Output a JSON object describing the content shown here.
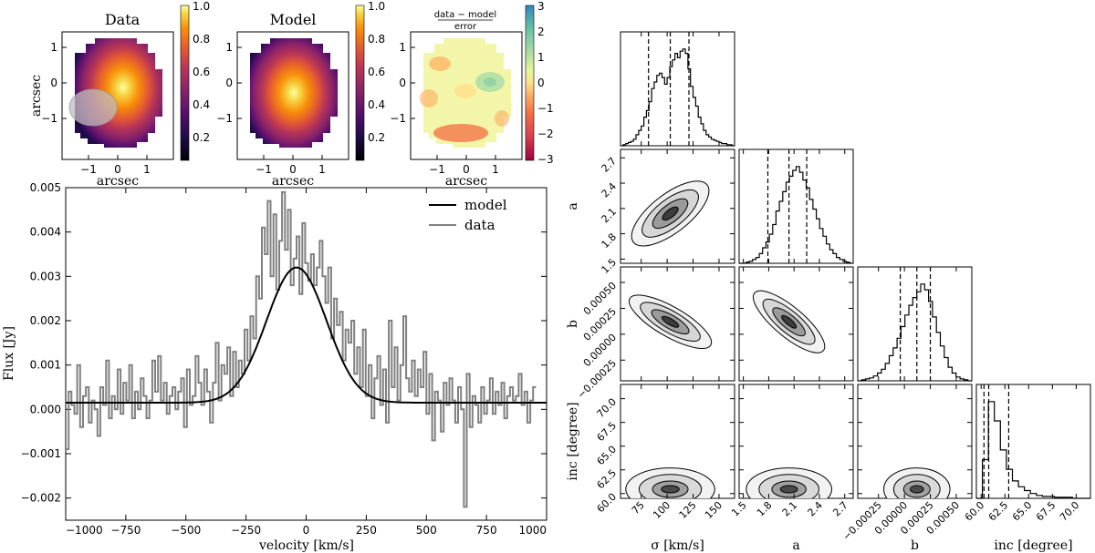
{
  "colors": {
    "black": "#000000",
    "data_line": "#808080",
    "frame": "#000000"
  },
  "maps": [
    {
      "title": "Data",
      "kind": "flux",
      "xlabel": "arcsec",
      "ylabel": "arcsec",
      "x_ticks": [
        "−1",
        "0",
        "1"
      ],
      "y_ticks": [
        "1",
        "0",
        "−1"
      ],
      "colorbar_ticks": [
        "1.0",
        "0.8",
        "0.6",
        "0.4",
        "0.2"
      ],
      "beam": true
    },
    {
      "title": "Model",
      "kind": "flux",
      "xlabel": "arcsec",
      "ylabel": "",
      "x_ticks": [
        "−1",
        "0",
        "1"
      ],
      "y_ticks": [
        "1",
        "0",
        "−1"
      ],
      "colorbar_ticks": [
        "1.0",
        "0.8",
        "0.6",
        "0.4",
        "0.2"
      ],
      "beam": false
    },
    {
      "title_num": "data − model",
      "title_den": "error",
      "kind": "residual",
      "xlabel": "arcsec",
      "ylabel": "",
      "x_ticks": [
        "−1",
        "0",
        "1"
      ],
      "y_ticks": [
        "1",
        "0",
        "−1"
      ],
      "colorbar_ticks": [
        "3",
        "2",
        "1",
        "0",
        "−1",
        "−2",
        "−3"
      ],
      "beam": false
    }
  ],
  "chart_data": [
    {
      "type": "line",
      "title": "",
      "xlabel": "velocity [km/s]",
      "ylabel": "Flux [Jy]",
      "xlim": [
        -1000,
        1000
      ],
      "ylim": [
        -0.0025,
        0.005
      ],
      "x_tick_labels": [
        "−1000",
        "−750",
        "−500",
        "−250",
        "0",
        "250",
        "500",
        "750",
        "1000"
      ],
      "x_tick_values": [
        -1000,
        -750,
        -500,
        -250,
        0,
        250,
        500,
        750,
        1000
      ],
      "y_tick_labels": [
        "0.005",
        "0.004",
        "0.003",
        "0.002",
        "0.001",
        "0.000",
        "−0.001",
        "−0.002"
      ],
      "y_tick_values": [
        0.005,
        0.004,
        0.003,
        0.002,
        0.001,
        0.0,
        -0.001,
        -0.002
      ],
      "legend_position": "top-right",
      "series": [
        {
          "name": "model",
          "style": "smooth",
          "baseline": 0.00015,
          "amplitude": 0.00305,
          "center": -40,
          "sigma": 125
        },
        {
          "name": "data",
          "style": "steps",
          "x_start": -1000,
          "x_step": 12,
          "values": [
            -0.0009,
            0.0004,
            0.0001,
            -0.0001,
            0.001,
            -0.0004,
            0.0003,
            0.0005,
            -0.0003,
            0.0002,
            0.0,
            -0.0006,
            0.0005,
            0.0001,
            0.0011,
            -0.0002,
            0.0003,
            0.0,
            0.0009,
            -0.0001,
            0.0006,
            0.0002,
            0.001,
            -0.0002,
            0.0004,
            0.0,
            0.0007,
            0.0003,
            -0.0002,
            0.0002,
            0.0011,
            0.0004,
            0.0012,
            0.0002,
            0.0006,
            -0.0001,
            0.0003,
            0.0005,
            0.0,
            0.0004,
            0.0007,
            -0.0004,
            0.0009,
            0.0001,
            0.0003,
            0.0012,
            0.0006,
            0.0001,
            0.0009,
            0.0004,
            -0.0003,
            0.0006,
            0.0015,
            0.0002,
            0.001,
            0.0008,
            0.0014,
            0.0003,
            0.0013,
            0.0005,
            0.0011,
            0.0008,
            0.0018,
            0.0011,
            0.0021,
            0.0016,
            0.003,
            0.0025,
            0.0041,
            0.0035,
            0.0047,
            0.003,
            0.0044,
            0.0027,
            0.0038,
            0.0049,
            0.0036,
            0.0045,
            0.0028,
            0.0034,
            0.0039,
            0.0026,
            0.0042,
            0.0033,
            0.0029,
            0.0035,
            0.0028,
            0.0032,
            0.0038,
            0.003,
            0.0024,
            0.0032,
            0.0016,
            0.0025,
            0.0019,
            0.0022,
            0.0011,
            0.0018,
            0.0015,
            0.002,
            0.0008,
            0.0014,
            0.0005,
            0.0018,
            0.0003,
            0.001,
            -0.0002,
            0.0007,
            0.0012,
            0.0001,
            0.0009,
            -0.0003,
            0.002,
            0.0005,
            0.0014,
            0.0002,
            0.001,
            0.0021,
            0.0007,
            0.0004,
            0.0011,
            0.0003,
            0.0009,
            0.0005,
            0.0013,
            -0.0001,
            0.0008,
            -0.0007,
            0.0004,
            0.0002,
            -0.0005,
            0.0006,
            0.0001,
            0.0007,
            0.0002,
            -0.0003,
            0.0005,
            0.0,
            -0.0022,
            0.0008,
            -0.0004,
            0.0003,
            0.0001,
            -0.0003,
            0.0005,
            -0.0001,
            0.0002,
            0.0007,
            -0.0001,
            0.0004,
            0.0001,
            0.0006,
            -0.0002,
            0.0003,
            0.0005,
            0.0002,
            0.0003,
            0.0008,
            0.0001,
            0.0004,
            -0.0003,
            0.0002,
            0.0005
          ]
        }
      ]
    },
    {
      "type": "corner",
      "params": [
        "σ [km/s]",
        "a",
        "b",
        "inc [degree]"
      ],
      "param_labels_bottom": [
        "σ [km/s]",
        "a",
        "b",
        "inc [degree]"
      ],
      "param_labels_left": [
        "a",
        "b",
        "inc [degree]"
      ],
      "ranges": [
        [
          55,
          165
        ],
        [
          1.45,
          2.8
        ],
        [
          -0.00045,
          0.00065
        ],
        [
          59.5,
          71.5
        ]
      ],
      "ticks": [
        {
          "values": [
            75,
            100,
            125,
            150
          ],
          "labels": [
            "75",
            "100",
            "125",
            "150"
          ]
        },
        {
          "values": [
            1.5,
            1.8,
            2.1,
            2.4,
            2.7
          ],
          "labels": [
            "1.5",
            "1.8",
            "2.1",
            "2.4",
            "2.7"
          ]
        },
        {
          "values": [
            -0.00025,
            0.0,
            0.00025,
            0.0005
          ],
          "labels": [
            "−0.00025",
            "0.00000",
            "0.00025",
            "0.00050"
          ]
        },
        {
          "values": [
            60.0,
            62.5,
            65.0,
            67.5,
            70.0
          ],
          "labels": [
            "60.0",
            "62.5",
            "65.0",
            "67.5",
            "70.0"
          ]
        }
      ],
      "quantiles": [
        [
          82,
          103,
          121
        ],
        [
          1.79,
          2.04,
          2.25
        ],
        [
          -4e-05,
          0.00012,
          0.00025
        ],
        [
          60.3,
          60.8,
          62.9
        ]
      ],
      "histograms": [
        [
          0,
          1,
          2,
          3,
          4,
          6,
          10,
          14,
          18,
          26,
          32,
          40,
          52,
          58,
          64,
          66,
          62,
          56,
          62,
          72,
          78,
          84,
          80,
          86,
          88,
          84,
          70,
          54,
          44,
          36,
          26,
          20,
          14,
          10,
          8,
          6,
          5,
          4,
          3,
          2,
          2,
          1,
          1,
          0
        ],
        [
          0,
          0,
          1,
          2,
          4,
          6,
          10,
          16,
          22,
          30,
          40,
          54,
          64,
          74,
          84,
          90,
          96,
          100,
          94,
          86,
          78,
          66,
          56,
          46,
          36,
          28,
          20,
          14,
          10,
          6,
          4,
          2,
          1,
          0
        ],
        [
          0,
          1,
          2,
          3,
          5,
          8,
          12,
          18,
          26,
          34,
          44,
          56,
          68,
          78,
          86,
          92,
          100,
          94,
          82,
          66,
          50,
          36,
          24,
          14,
          8,
          4,
          2,
          1,
          0
        ],
        [
          0,
          40,
          100,
          80,
          50,
          30,
          18,
          12,
          8,
          5,
          3,
          2,
          2,
          1,
          1,
          1,
          0,
          0,
          0
        ]
      ]
    }
  ]
}
